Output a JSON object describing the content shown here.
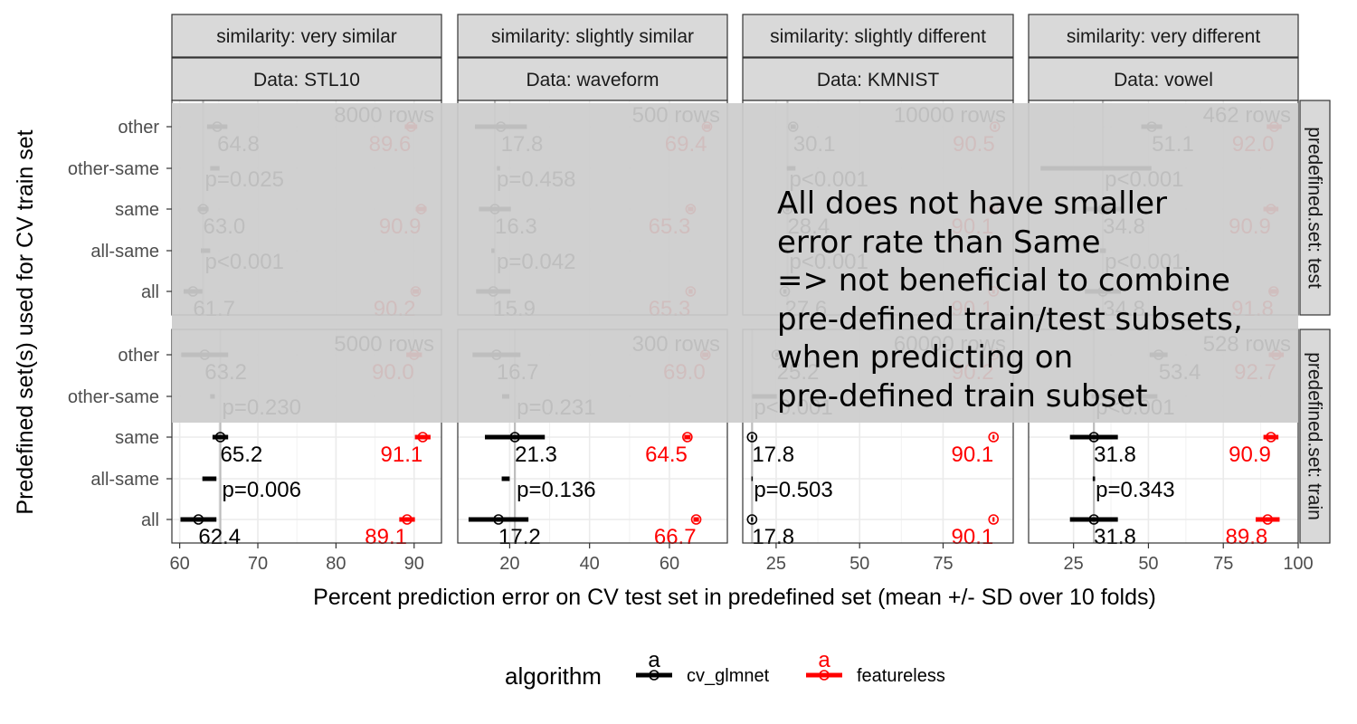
{
  "chart_data": {
    "type": "scatter",
    "title": "",
    "xlabel": "Percent prediction error on CV test set in predefined set (mean +/- SD over 10 folds)",
    "ylabel": "Predefined set(s) used for CV train set",
    "y_categories": [
      "other",
      "other-same",
      "same",
      "all-same",
      "all"
    ],
    "col_strip_top": [
      "similarity: very similar",
      "similarity: slightly similar",
      "similarity: slightly different",
      "similarity: very different"
    ],
    "col_strip_bottom": [
      "Data: STL10",
      "Data: waveform",
      "Data: KMNIST",
      "Data: vowel"
    ],
    "row_strips": [
      "predefined.set: test",
      "predefined.set: train"
    ],
    "legend": {
      "title": "algorithm",
      "position": "bottom",
      "entries": [
        {
          "name": "cv_glmnet",
          "color": "#000000",
          "key_text": "a"
        },
        {
          "name": "featureless",
          "color": "#ff0000",
          "key_text": "a"
        }
      ]
    },
    "colors": {
      "cv_glmnet": "#000000",
      "featureless": "#ff0000",
      "strip": "#d9d9d9",
      "grid": "#ebebeb",
      "overlay": "#cccccc"
    },
    "panels_x": [
      {
        "xlim": [
          59,
          93.5
        ],
        "ticks": [
          60,
          70,
          80,
          90
        ],
        "tick_labels": [
          "60",
          "70",
          "80",
          "90"
        ]
      },
      {
        "xlim": [
          7,
          74.5
        ],
        "ticks": [
          20,
          40,
          60
        ],
        "tick_labels": [
          "20",
          "40",
          "60"
        ]
      },
      {
        "xlim": [
          15,
          96
        ],
        "ticks": [
          25,
          50,
          75
        ],
        "tick_labels": [
          "25",
          "50",
          "75"
        ]
      },
      {
        "xlim": [
          10,
          100
        ],
        "ticks": [
          25,
          50,
          75,
          100
        ],
        "tick_labels": [
          "25",
          "50",
          "75",
          "100"
        ]
      }
    ],
    "panels": [
      {
        "row": 0,
        "col": 0,
        "rows_label": "8000 rows",
        "glmnet": [
          {
            "y": "other",
            "mean": 64.8,
            "sd": 1.3
          },
          {
            "y": "same",
            "mean": 63.0,
            "sd": 0.7
          },
          {
            "y": "all",
            "mean": 61.7,
            "sd": 1.2
          }
        ],
        "featureless": [
          {
            "y": "other",
            "mean": 89.6,
            "sd": 0.8
          },
          {
            "y": "same",
            "mean": 90.9,
            "sd": 0.7
          },
          {
            "y": "all",
            "mean": 90.2,
            "sd": 0.4
          }
        ],
        "diff": [
          {
            "y": "other-same",
            "mean": 64.5,
            "sd": 0.6,
            "p": "p=0.025"
          },
          {
            "y": "all-same",
            "mean": 63.3,
            "sd": 0.6,
            "p": "p<0.001"
          }
        ],
        "glmnet_labels": [
          {
            "y": "other",
            "text": "64.8"
          },
          {
            "y": "same",
            "text": "63.0"
          },
          {
            "y": "all",
            "text": "61.7"
          }
        ],
        "featureless_labels": [
          {
            "y": "other",
            "text": "89.6"
          },
          {
            "y": "same",
            "text": "90.9"
          },
          {
            "y": "all",
            "text": "90.2"
          }
        ],
        "ref": 63.0
      },
      {
        "row": 0,
        "col": 1,
        "rows_label": "500 rows",
        "glmnet": [
          {
            "y": "other",
            "mean": 17.8,
            "sd": 6.5
          },
          {
            "y": "same",
            "mean": 16.3,
            "sd": 4.0
          },
          {
            "y": "all",
            "mean": 15.9,
            "sd": 4.3
          }
        ],
        "featureless": [
          {
            "y": "other",
            "mean": 69.4,
            "sd": 0.8
          },
          {
            "y": "same",
            "mean": 65.3,
            "sd": 0.7
          },
          {
            "y": "all",
            "mean": 65.3,
            "sd": 0.5
          }
        ],
        "diff": [
          {
            "y": "other-same",
            "mean": 17.2,
            "sd": 0.4,
            "p": "p=0.458"
          },
          {
            "y": "all-same",
            "mean": 15.8,
            "sd": 0.4,
            "p": "p=0.042"
          }
        ],
        "glmnet_labels": [
          {
            "y": "other",
            "text": "17.8"
          },
          {
            "y": "same",
            "text": "16.3"
          },
          {
            "y": "all",
            "text": "15.9"
          }
        ],
        "featureless_labels": [
          {
            "y": "other",
            "text": "69.4"
          },
          {
            "y": "same",
            "text": "65.3"
          },
          {
            "y": "all",
            "text": "65.3"
          }
        ],
        "ref": 16.3
      },
      {
        "row": 0,
        "col": 2,
        "rows_label": "10000 rows",
        "glmnet": [
          {
            "y": "other",
            "mean": 30.1,
            "sd": 0.8
          },
          {
            "y": "same",
            "mean": 28.4,
            "sd": 0.5
          },
          {
            "y": "all",
            "mean": 27.6,
            "sd": 0.5
          }
        ],
        "featureless": [
          {
            "y": "other",
            "mean": 90.5,
            "sd": 0.4
          },
          {
            "y": "same",
            "mean": 90.1,
            "sd": 0.4
          },
          {
            "y": "all",
            "mean": 90.1,
            "sd": 0.4
          }
        ],
        "diff": [
          {
            "y": "other-same",
            "mean": 29.5,
            "sd": 1.3,
            "p": "p<0.001"
          },
          {
            "y": "all-same",
            "mean": 27.8,
            "sd": 0.5,
            "p": "p<0.001"
          }
        ],
        "glmnet_labels": [
          {
            "y": "other",
            "text": "30.1"
          },
          {
            "y": "same",
            "text": "28.4"
          },
          {
            "y": "all",
            "text": "27.6"
          }
        ],
        "featureless_labels": [
          {
            "y": "other",
            "text": "90.5"
          },
          {
            "y": "same",
            "text": "90.1"
          },
          {
            "y": "all",
            "text": "90.1"
          }
        ],
        "ref": 28.4
      },
      {
        "row": 0,
        "col": 3,
        "rows_label": "462 rows",
        "glmnet": [
          {
            "y": "other",
            "mean": 51.1,
            "sd": 3.5
          },
          {
            "y": "same",
            "mean": 34.8,
            "sd": 6.0
          },
          {
            "y": "all",
            "mean": 34.8,
            "sd": 6.0
          }
        ],
        "featureless": [
          {
            "y": "other",
            "mean": 92.0,
            "sd": 2.5
          },
          {
            "y": "same",
            "mean": 90.9,
            "sd": 2.5
          },
          {
            "y": "all",
            "mean": 91.8,
            "sd": 1.5
          }
        ],
        "diff": [
          {
            "y": "other-same",
            "mean": 32.5,
            "sd": 18.5,
            "p": "p<0.001"
          },
          {
            "y": "all-same",
            "mean": 34.8,
            "sd": 1.0,
            "p": "p<0.001"
          }
        ],
        "glmnet_labels": [
          {
            "y": "other",
            "text": "51.1"
          },
          {
            "y": "same",
            "text": "34.8"
          },
          {
            "y": "all",
            "text": "34.8"
          }
        ],
        "featureless_labels": [
          {
            "y": "other",
            "text": "92.0"
          },
          {
            "y": "same",
            "text": "90.9"
          },
          {
            "y": "all",
            "text": "91.8"
          }
        ],
        "ref": 34.8
      },
      {
        "row": 1,
        "col": 0,
        "rows_label": "5000 rows",
        "glmnet": [
          {
            "y": "other",
            "mean": 63.2,
            "sd": 3.0
          },
          {
            "y": "same",
            "mean": 65.2,
            "sd": 1.0
          },
          {
            "y": "all",
            "mean": 62.4,
            "sd": 2.3
          }
        ],
        "featureless": [
          {
            "y": "other",
            "mean": 90.0,
            "sd": 1.0
          },
          {
            "y": "same",
            "mean": 91.1,
            "sd": 1.0
          },
          {
            "y": "all",
            "mean": 89.1,
            "sd": 1.0
          }
        ],
        "diff": [
          {
            "y": "other-same",
            "mean": 64.2,
            "sd": 0.3,
            "p": "p=0.230"
          },
          {
            "y": "all-same",
            "mean": 63.8,
            "sd": 0.9,
            "p": "p=0.006"
          }
        ],
        "glmnet_labels": [
          {
            "y": "other",
            "text": "63.2"
          },
          {
            "y": "same",
            "text": "65.2"
          },
          {
            "y": "all",
            "text": "62.4"
          }
        ],
        "featureless_labels": [
          {
            "y": "other",
            "text": "90.0"
          },
          {
            "y": "same",
            "text": "91.1"
          },
          {
            "y": "all",
            "text": "89.1"
          }
        ],
        "ref": 65.2
      },
      {
        "row": 1,
        "col": 1,
        "rows_label": "300 rows",
        "glmnet": [
          {
            "y": "other",
            "mean": 16.7,
            "sd": 6.0
          },
          {
            "y": "same",
            "mean": 21.3,
            "sd": 7.5
          },
          {
            "y": "all",
            "mean": 17.2,
            "sd": 7.5
          }
        ],
        "featureless": [
          {
            "y": "other",
            "mean": 69.0,
            "sd": 0.8
          },
          {
            "y": "same",
            "mean": 64.5,
            "sd": 0.8
          },
          {
            "y": "all",
            "mean": 66.7,
            "sd": 0.7
          }
        ],
        "diff": [
          {
            "y": "other-same",
            "mean": 19.0,
            "sd": 0.9,
            "p": "p=0.231"
          },
          {
            "y": "all-same",
            "mean": 19.0,
            "sd": 1.0,
            "p": "p=0.136"
          }
        ],
        "glmnet_labels": [
          {
            "y": "other",
            "text": "16.7"
          },
          {
            "y": "same",
            "text": "21.3"
          },
          {
            "y": "all",
            "text": "17.2"
          }
        ],
        "featureless_labels": [
          {
            "y": "other",
            "text": "69.0"
          },
          {
            "y": "same",
            "text": "64.5"
          },
          {
            "y": "all",
            "text": "66.7"
          }
        ],
        "ref": 21.3
      },
      {
        "row": 1,
        "col": 2,
        "rows_label": "60000 rows",
        "glmnet": [
          {
            "y": "other",
            "mean": 25.2,
            "sd": 0.5
          },
          {
            "y": "same",
            "mean": 17.8,
            "sd": 0.3
          },
          {
            "y": "all",
            "mean": 17.8,
            "sd": 0.3
          }
        ],
        "featureless": [
          {
            "y": "other",
            "mean": 90.2,
            "sd": 0.3
          },
          {
            "y": "same",
            "mean": 90.1,
            "sd": 0.3
          },
          {
            "y": "all",
            "mean": 90.1,
            "sd": 0.3
          }
        ],
        "diff": [
          {
            "y": "other-same",
            "mean": 21.5,
            "sd": 3.7,
            "p": "p<0.001"
          },
          {
            "y": "all-same",
            "mean": 17.8,
            "sd": 0.2,
            "p": "p=0.503"
          }
        ],
        "glmnet_labels": [
          {
            "y": "other",
            "text": "25.2"
          },
          {
            "y": "same",
            "text": "17.8"
          },
          {
            "y": "all",
            "text": "17.8"
          }
        ],
        "featureless_labels": [
          {
            "y": "other",
            "text": "90.2"
          },
          {
            "y": "same",
            "text": "90.1"
          },
          {
            "y": "all",
            "text": "90.1"
          }
        ],
        "ref": 17.8
      },
      {
        "row": 1,
        "col": 3,
        "rows_label": "528 rows",
        "glmnet": [
          {
            "y": "other",
            "mean": 53.4,
            "sd": 3.0
          },
          {
            "y": "same",
            "mean": 31.8,
            "sd": 8.0
          },
          {
            "y": "all",
            "mean": 31.8,
            "sd": 8.0
          }
        ],
        "featureless": [
          {
            "y": "other",
            "mean": 92.7,
            "sd": 2.5
          },
          {
            "y": "same",
            "mean": 90.9,
            "sd": 2.5
          },
          {
            "y": "all",
            "mean": 89.8,
            "sd": 4.0
          }
        ],
        "diff": [
          {
            "y": "other-same",
            "mean": 42.0,
            "sd": 11.0,
            "p": "p<0.001"
          },
          {
            "y": "all-same",
            "mean": 31.8,
            "sd": 0.4,
            "p": "p=0.343"
          }
        ],
        "glmnet_labels": [
          {
            "y": "other",
            "text": "53.4"
          },
          {
            "y": "same",
            "text": "31.8"
          },
          {
            "y": "all",
            "text": "31.8"
          }
        ],
        "featureless_labels": [
          {
            "y": "other",
            "text": "92.7"
          },
          {
            "y": "same",
            "text": "90.9"
          },
          {
            "y": "all",
            "text": "89.8"
          }
        ],
        "ref": 31.8
      }
    ]
  },
  "annotation": {
    "lines": [
      "All does not have smaller",
      "error rate than Same",
      "=> not beneficial to combine",
      "pre-defined train/test subsets,",
      "when predicting on",
      "pre-defined train subset"
    ]
  }
}
